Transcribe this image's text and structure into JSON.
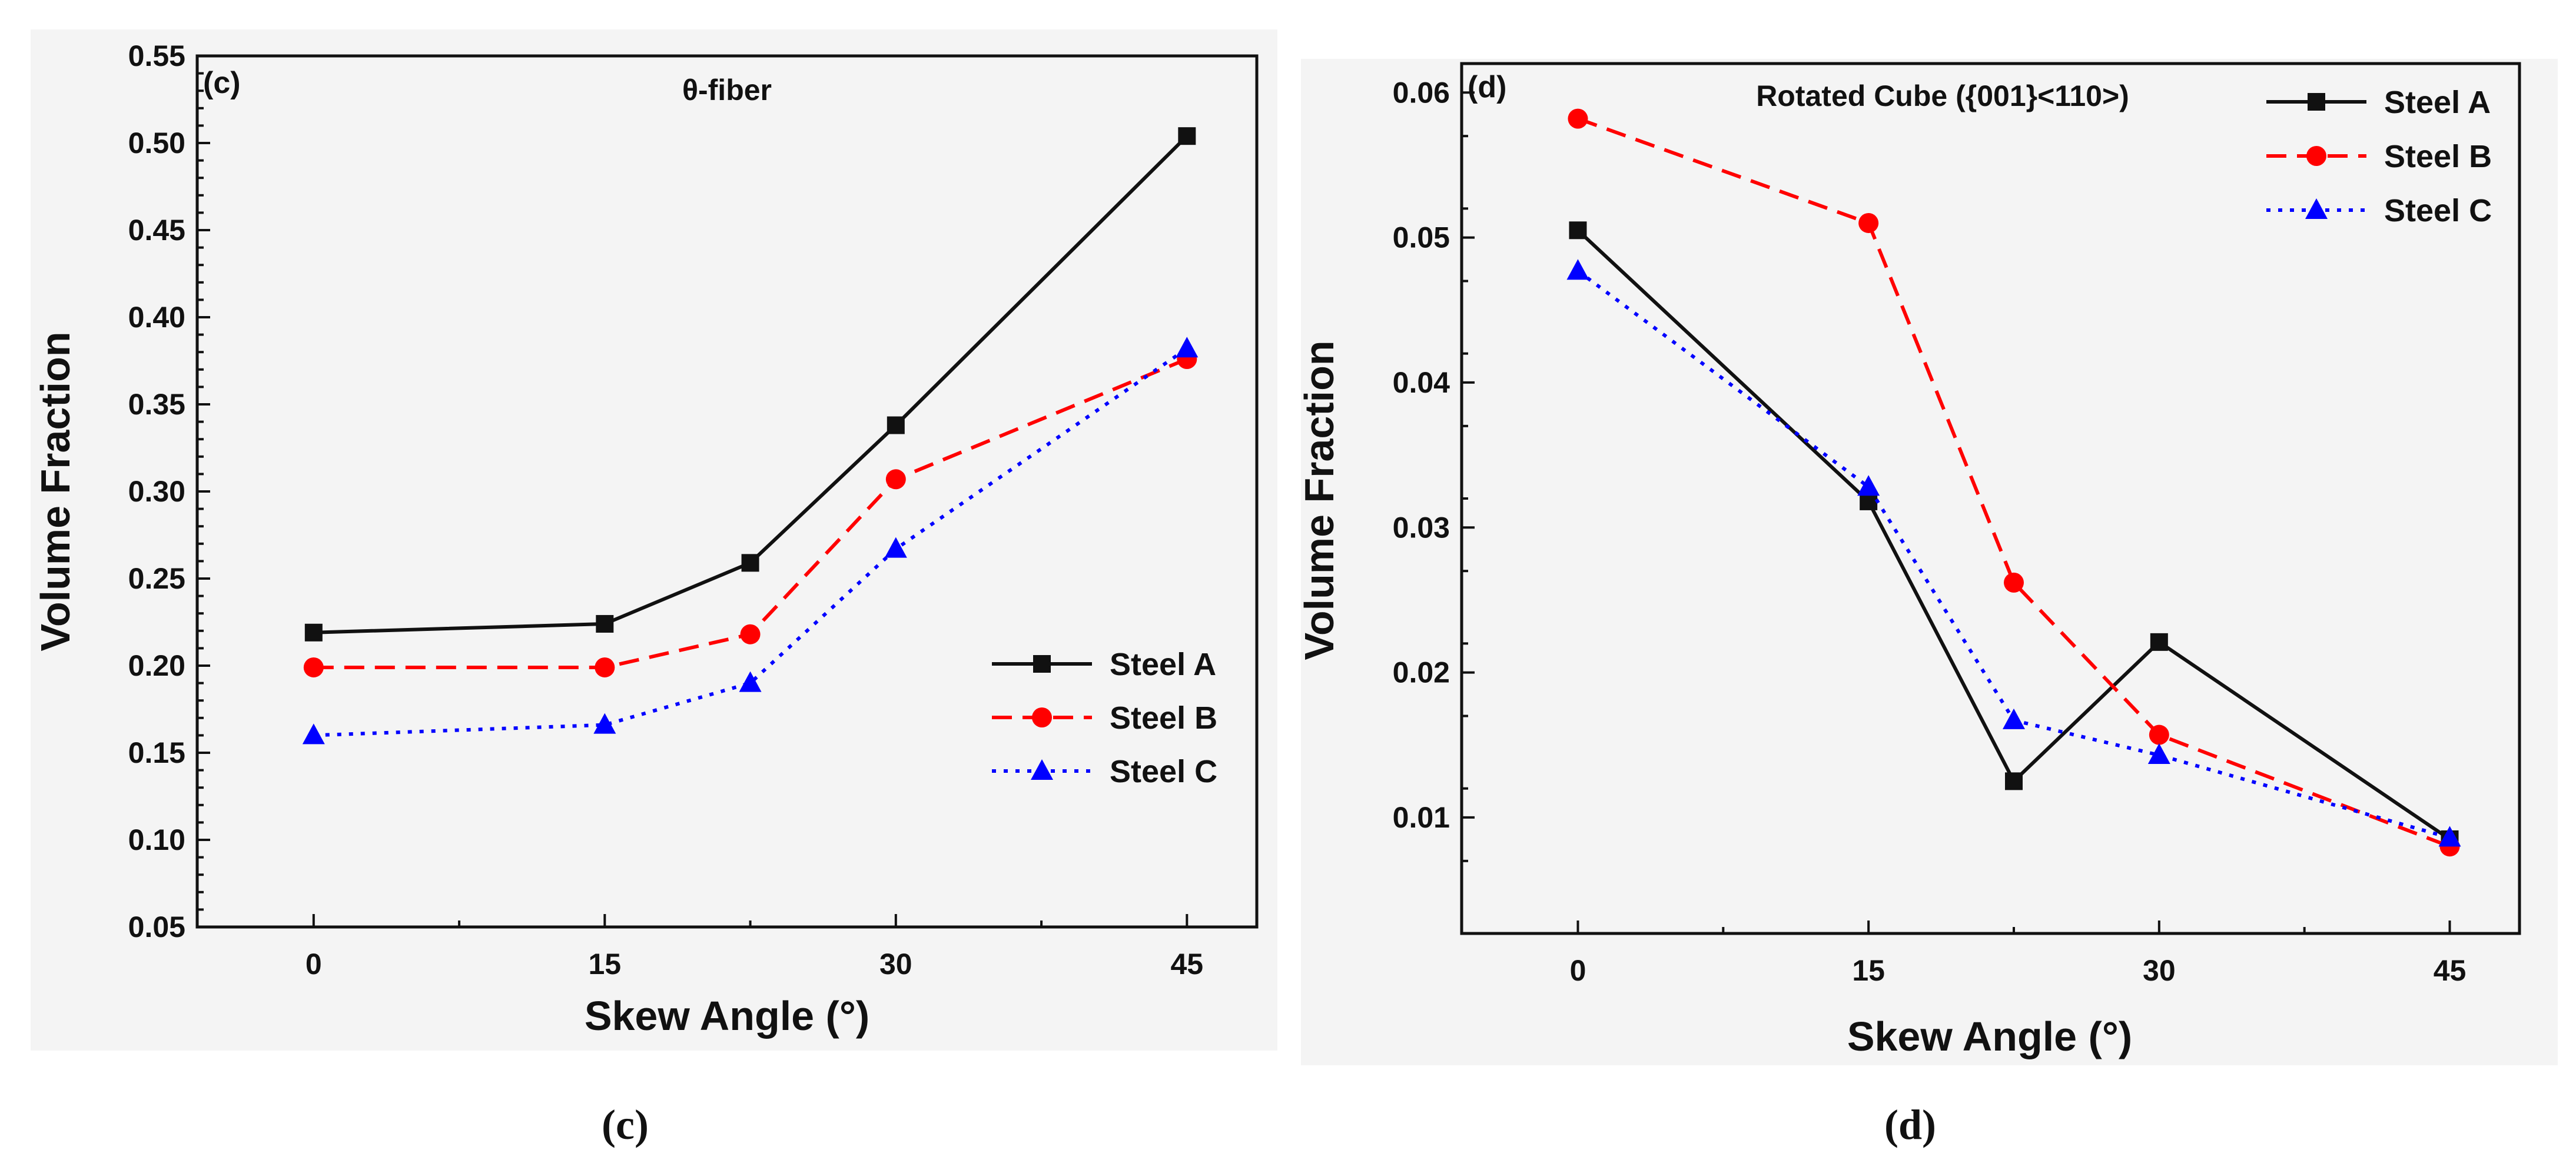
{
  "chart_data": [
    {
      "type": "line",
      "panel_label": "(c)",
      "caption": "(c)",
      "title": "θ-fiber",
      "xlabel": "Skew Angle (°)",
      "ylabel": "Volume Fraction",
      "xlim": [
        -6,
        48.6
      ],
      "ylim": [
        0.05,
        0.55
      ],
      "x_ticks": [
        0,
        15,
        30,
        45
      ],
      "x_minor_ticks": [
        7.5,
        22.5,
        37.5
      ],
      "y_ticks": [
        0.05,
        0.1,
        0.15,
        0.2,
        0.25,
        0.3,
        0.35,
        0.4,
        0.45,
        0.5,
        0.55
      ],
      "y_tick_labels": [
        "0.05",
        "0.10",
        "0.15",
        "0.20",
        "0.25",
        "0.30",
        "0.35",
        "0.40",
        "0.45",
        "0.50",
        "0.55"
      ],
      "y_minor_step": 0.01,
      "legend_position": "middle-right",
      "series": [
        {
          "name": "Steel A",
          "color": "#111111",
          "dash": "solid",
          "marker": "square",
          "x": [
            0,
            15,
            22.5,
            30,
            45
          ],
          "y": [
            0.219,
            0.224,
            0.259,
            0.338,
            0.504
          ]
        },
        {
          "name": "Steel B",
          "color": "#ff0000",
          "dash": "dashed",
          "marker": "circle",
          "x": [
            0,
            15,
            22.5,
            30,
            45
          ],
          "y": [
            0.199,
            0.199,
            0.218,
            0.307,
            0.376
          ]
        },
        {
          "name": "Steel C",
          "color": "#0000ff",
          "dash": "dotted",
          "marker": "triangle",
          "x": [
            0,
            15,
            22.5,
            30,
            45
          ],
          "y": [
            0.16,
            0.166,
            0.19,
            0.267,
            0.382
          ]
        }
      ]
    },
    {
      "type": "line",
      "panel_label": "(d)",
      "caption": "(d)",
      "title": "Rotated Cube ({001}<110>)",
      "xlabel": "Skew Angle (°)",
      "ylabel": "Volume Fraction",
      "xlim": [
        -6,
        48.6
      ],
      "ylim": [
        0.002,
        0.062
      ],
      "x_ticks": [
        0,
        15,
        30,
        45
      ],
      "x_minor_ticks": [
        7.5,
        22.5,
        37.5
      ],
      "y_ticks": [
        0.01,
        0.02,
        0.03,
        0.04,
        0.05,
        0.06
      ],
      "y_tick_labels": [
        "0.01",
        "0.02",
        "0.03",
        "0.04",
        "0.05",
        "0.06"
      ],
      "y_minor_step": 0.005,
      "legend_position": "top-right",
      "series": [
        {
          "name": "Steel A",
          "color": "#111111",
          "dash": "solid",
          "marker": "square",
          "x": [
            0,
            15,
            22.5,
            30,
            45
          ],
          "y": [
            0.0505,
            0.0318,
            0.0125,
            0.0221,
            0.0085
          ]
        },
        {
          "name": "Steel B",
          "color": "#ff0000",
          "dash": "dashed",
          "marker": "circle",
          "x": [
            0,
            15,
            22.5,
            30,
            45
          ],
          "y": [
            0.0582,
            0.051,
            0.0262,
            0.0157,
            0.008
          ]
        },
        {
          "name": "Steel C",
          "color": "#0000ff",
          "dash": "dotted",
          "marker": "triangle",
          "x": [
            0,
            15,
            22.5,
            30,
            45
          ],
          "y": [
            0.0477,
            0.0328,
            0.0167,
            0.0143,
            0.0086
          ]
        }
      ]
    }
  ]
}
